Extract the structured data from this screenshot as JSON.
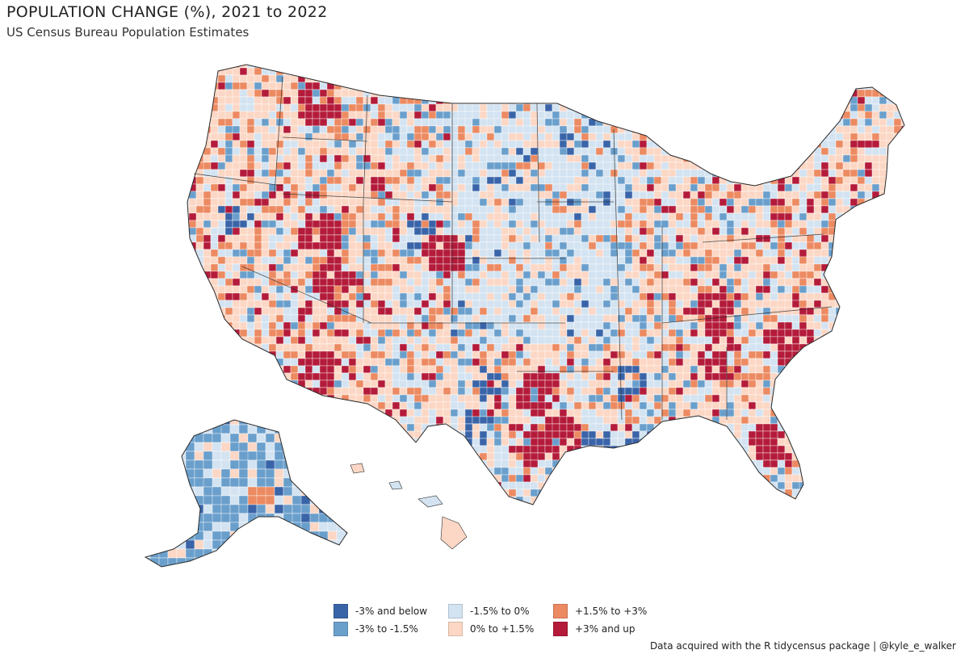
{
  "title": "POPULATION CHANGE (%), 2021 to 2022",
  "subtitle": "US Census Bureau Population Estimates",
  "caption": "Data acquired with the R tidycensus package | @kyle_e_walker",
  "colors": {
    "neg3": "#3a64a8",
    "neg15": "#6a9fcc",
    "neg0": "#d3e3f1",
    "pos0": "#fcd7c5",
    "pos15": "#ec8a62",
    "pos3": "#b41b3a",
    "border": "#2a2a2a"
  },
  "legend": [
    {
      "label": "-3% and below",
      "color": "#3a64a8"
    },
    {
      "label": "-1.5% to 0%",
      "color": "#d3e3f1"
    },
    {
      "label": "+1.5% to +3%",
      "color": "#ec8a62"
    },
    {
      "label": "-3% to -1.5%",
      "color": "#6a9fcc"
    },
    {
      "label": "0% to +1.5%",
      "color": "#fcd7c5"
    },
    {
      "label": "+3% and up",
      "color": "#b41b3a"
    }
  ]
}
